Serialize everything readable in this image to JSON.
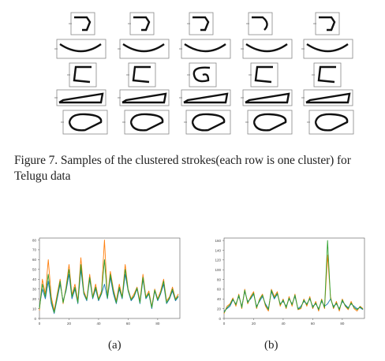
{
  "figure7": {
    "caption": "Figure 7. Samples of the clustered strokes(each row is one cluster) for Telugu data",
    "rows": [
      {
        "cluster": "hook",
        "samples": 5
      },
      {
        "cluster": "cup",
        "samples": 5
      },
      {
        "cluster": "c",
        "samples": 5
      },
      {
        "cluster": "bar",
        "samples": 5
      },
      {
        "cluster": "loop",
        "samples": 5
      }
    ]
  },
  "panels": [
    {
      "label": "(a)"
    },
    {
      "label": "(b)"
    }
  ],
  "chart_data": [
    {
      "type": "line",
      "panel": "(a)",
      "title": "",
      "xlabel": "",
      "ylabel": "",
      "xlim": [
        0,
        95
      ],
      "ylim": [
        0,
        82
      ],
      "xticks": [
        0,
        10,
        20,
        30,
        40,
        50,
        60,
        70,
        80,
        90
      ],
      "yticks": [
        0,
        10,
        20,
        30,
        40,
        50,
        60,
        70,
        80
      ],
      "xtick_labels": [
        "0",
        "20",
        "40",
        "60",
        "80"
      ],
      "ytick_labels": [
        "0",
        "10",
        "20",
        "30",
        "40",
        "50",
        "60",
        "70",
        "80"
      ],
      "x": [
        0,
        2,
        4,
        6,
        8,
        10,
        12,
        14,
        16,
        18,
        20,
        22,
        24,
        26,
        28,
        30,
        32,
        34,
        36,
        38,
        40,
        42,
        44,
        46,
        48,
        50,
        52,
        54,
        56,
        58,
        60,
        62,
        64,
        66,
        68,
        70,
        72,
        74,
        76,
        78,
        80,
        82,
        84,
        86,
        88,
        90,
        92,
        94
      ],
      "series": [
        {
          "color": "#1f77b4",
          "values": [
            12,
            30,
            20,
            38,
            15,
            5,
            20,
            35,
            18,
            28,
            45,
            20,
            30,
            15,
            50,
            25,
            18,
            40,
            20,
            30,
            18,
            25,
            35,
            20,
            42,
            25,
            15,
            30,
            20,
            45,
            28,
            18,
            22,
            30,
            15,
            40,
            20,
            25,
            10,
            28,
            18,
            25,
            35,
            15,
            20,
            28,
            18,
            22
          ]
        },
        {
          "color": "#ff7f0e",
          "values": [
            8,
            40,
            25,
            60,
            22,
            8,
            25,
            40,
            15,
            32,
            55,
            24,
            35,
            18,
            62,
            28,
            20,
            45,
            22,
            35,
            20,
            28,
            80,
            22,
            48,
            30,
            18,
            35,
            22,
            55,
            30,
            20,
            25,
            32,
            18,
            45,
            22,
            28,
            12,
            30,
            20,
            28,
            40,
            18,
            22,
            32,
            20,
            25
          ]
        },
        {
          "color": "#2ca02c",
          "values": [
            10,
            35,
            22,
            45,
            18,
            6,
            22,
            38,
            16,
            30,
            50,
            22,
            32,
            16,
            55,
            26,
            19,
            42,
            21,
            32,
            19,
            26,
            60,
            21,
            45,
            28,
            16,
            32,
            21,
            50,
            29,
            19,
            23,
            31,
            16,
            42,
            21,
            26,
            11,
            29,
            19,
            26,
            38,
            16,
            21,
            30,
            19,
            23
          ]
        }
      ]
    },
    {
      "type": "line",
      "panel": "(b)",
      "title": "",
      "xlabel": "",
      "ylabel": "",
      "xlim": [
        0,
        95
      ],
      "ylim": [
        0,
        165
      ],
      "xticks": [
        0,
        10,
        20,
        30,
        40,
        50,
        60,
        70,
        80,
        90
      ],
      "yticks": [
        0,
        20,
        40,
        60,
        80,
        100,
        120,
        140,
        160
      ],
      "xtick_labels": [
        "0",
        "20",
        "40",
        "60",
        "80"
      ],
      "ytick_labels": [
        "0",
        "20",
        "40",
        "60",
        "80",
        "100",
        "120",
        "140",
        "160"
      ],
      "x": [
        0,
        2,
        4,
        6,
        8,
        10,
        12,
        14,
        16,
        18,
        20,
        22,
        24,
        26,
        28,
        30,
        32,
        34,
        36,
        38,
        40,
        42,
        44,
        46,
        48,
        50,
        52,
        54,
        56,
        58,
        60,
        62,
        64,
        66,
        68,
        70,
        72,
        74,
        76,
        78,
        80,
        82,
        84,
        86,
        88,
        90,
        92,
        94
      ],
      "series": [
        {
          "color": "#1f77b4",
          "values": [
            15,
            20,
            25,
            38,
            30,
            45,
            25,
            55,
            35,
            40,
            50,
            25,
            35,
            45,
            30,
            20,
            55,
            40,
            50,
            30,
            35,
            25,
            40,
            30,
            45,
            20,
            25,
            35,
            30,
            40,
            25,
            30,
            20,
            35,
            25,
            30,
            40,
            25,
            30,
            20,
            35,
            28,
            22,
            30,
            25,
            20,
            22,
            18
          ]
        },
        {
          "color": "#ff7f0e",
          "values": [
            10,
            25,
            30,
            42,
            25,
            50,
            20,
            60,
            30,
            45,
            55,
            20,
            40,
            50,
            25,
            15,
            60,
            45,
            55,
            25,
            40,
            20,
            45,
            25,
            50,
            18,
            20,
            40,
            25,
            45,
            20,
            35,
            15,
            40,
            20,
            130,
            45,
            20,
            35,
            15,
            40,
            25,
            18,
            35,
            20,
            15,
            25,
            20
          ]
        },
        {
          "color": "#2ca02c",
          "values": [
            12,
            22,
            28,
            40,
            28,
            48,
            22,
            58,
            32,
            42,
            52,
            22,
            38,
            48,
            28,
            18,
            58,
            42,
            52,
            28,
            38,
            22,
            42,
            28,
            48,
            19,
            22,
            38,
            28,
            42,
            22,
            32,
            18,
            38,
            22,
            160,
            42,
            22,
            32,
            18,
            38,
            26,
            20,
            32,
            22,
            18,
            24,
            19
          ]
        }
      ]
    }
  ]
}
